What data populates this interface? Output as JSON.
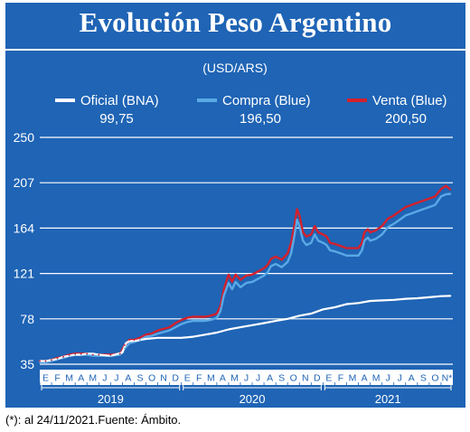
{
  "title": "Evolución Peso Argentino",
  "source_note": "(*): al 24/11/2021.Fuente: Ámbito.",
  "colors": {
    "panel": "#1f64b5",
    "oficial": "#ffffff",
    "compra": "#5aa9e6",
    "venta": "#d4202c",
    "axis_text": "#ffffff",
    "gridline": "#ffffff"
  },
  "chart_data": {
    "type": "line",
    "subtitle": "(USD/ARS)",
    "ylim": [
      35,
      250
    ],
    "yticks": [
      35,
      78,
      121,
      164,
      207,
      250
    ],
    "grid": true,
    "legend_placement": "top",
    "month_labels": [
      "E",
      "F",
      "M",
      "A",
      "M",
      "J",
      "J",
      "A",
      "S",
      "O",
      "N",
      "D",
      "E",
      "F",
      "M",
      "A",
      "M",
      "J",
      "J",
      "A",
      "S",
      "O",
      "N",
      "D",
      "E",
      "F",
      "M",
      "A",
      "M",
      "J",
      "J",
      "A",
      "S",
      "O",
      "N*"
    ],
    "years": [
      {
        "label": "2019",
        "start_month": 0,
        "end_month": 12
      },
      {
        "label": "2020",
        "start_month": 12,
        "end_month": 24
      },
      {
        "label": "2021",
        "start_month": 24,
        "end_month": 35
      }
    ],
    "series": [
      {
        "name": "Oficial (BNA)",
        "last_value": "99,75",
        "color": "#ffffff",
        "points": [
          [
            0,
            38
          ],
          [
            0.5,
            38
          ],
          [
            1,
            39
          ],
          [
            1.5,
            40
          ],
          [
            2,
            42
          ],
          [
            2.5,
            43
          ],
          [
            3,
            44
          ],
          [
            3.5,
            44
          ],
          [
            4,
            45
          ],
          [
            4.5,
            45
          ],
          [
            5,
            44
          ],
          [
            6,
            43
          ],
          [
            7,
            46
          ],
          [
            7.3,
            55
          ],
          [
            7.6,
            57
          ],
          [
            8,
            57
          ],
          [
            9,
            59
          ],
          [
            10,
            60
          ],
          [
            11,
            60
          ],
          [
            12,
            60
          ],
          [
            13,
            61
          ],
          [
            14,
            63
          ],
          [
            15,
            65
          ],
          [
            16,
            68
          ],
          [
            17,
            70
          ],
          [
            18,
            72
          ],
          [
            19,
            74
          ],
          [
            20,
            76
          ],
          [
            21,
            78
          ],
          [
            22,
            81
          ],
          [
            23,
            83
          ],
          [
            24,
            87
          ],
          [
            25,
            89
          ],
          [
            26,
            92
          ],
          [
            27,
            93
          ],
          [
            28,
            95
          ],
          [
            29,
            95.5
          ],
          [
            30,
            96
          ],
          [
            31,
            97
          ],
          [
            32,
            97.5
          ],
          [
            33,
            98.5
          ],
          [
            34,
            99.5
          ],
          [
            34.8,
            99.75
          ]
        ]
      },
      {
        "name": "Compra (Blue)",
        "last_value": "196,50",
        "color": "#5aa9e6",
        "points": [
          [
            0,
            37
          ],
          [
            0.5,
            37
          ],
          [
            1,
            38
          ],
          [
            1.5,
            40
          ],
          [
            2,
            41
          ],
          [
            2.5,
            43
          ],
          [
            3,
            44
          ],
          [
            3.5,
            44
          ],
          [
            4,
            44
          ],
          [
            4.5,
            43
          ],
          [
            5,
            43
          ],
          [
            6,
            43
          ],
          [
            6.8,
            44
          ],
          [
            7.2,
            50
          ],
          [
            7.6,
            55
          ],
          [
            8,
            56
          ],
          [
            8.5,
            58
          ],
          [
            9,
            61
          ],
          [
            9.5,
            62
          ],
          [
            10,
            64
          ],
          [
            11,
            67
          ],
          [
            11.5,
            70
          ],
          [
            12,
            73
          ],
          [
            12.5,
            75
          ],
          [
            13,
            76
          ],
          [
            13.5,
            76
          ],
          [
            14,
            76
          ],
          [
            14.5,
            77
          ],
          [
            15,
            79
          ],
          [
            15.3,
            85
          ],
          [
            15.6,
            100
          ],
          [
            16,
            112
          ],
          [
            16.3,
            106
          ],
          [
            16.6,
            113
          ],
          [
            17,
            108
          ],
          [
            17.5,
            112
          ],
          [
            18,
            113
          ],
          [
            18.5,
            116
          ],
          [
            19,
            119
          ],
          [
            19.3,
            122
          ],
          [
            19.6,
            128
          ],
          [
            20,
            130
          ],
          [
            20.5,
            127
          ],
          [
            21,
            132
          ],
          [
            21.3,
            140
          ],
          [
            21.6,
            158
          ],
          [
            21.8,
            172
          ],
          [
            22,
            166
          ],
          [
            22.3,
            152
          ],
          [
            22.6,
            148
          ],
          [
            23,
            150
          ],
          [
            23.3,
            158
          ],
          [
            23.6,
            152
          ],
          [
            24,
            150
          ],
          [
            24.3,
            148
          ],
          [
            24.6,
            143
          ],
          [
            25,
            142
          ],
          [
            25.5,
            140
          ],
          [
            26,
            138
          ],
          [
            26.5,
            138
          ],
          [
            27,
            138
          ],
          [
            27.3,
            143
          ],
          [
            27.5,
            152
          ],
          [
            27.8,
            155
          ],
          [
            28,
            152
          ],
          [
            28.5,
            154
          ],
          [
            29,
            158
          ],
          [
            29.5,
            165
          ],
          [
            30,
            168
          ],
          [
            30.5,
            172
          ],
          [
            31,
            176
          ],
          [
            31.5,
            178
          ],
          [
            32,
            180
          ],
          [
            32.5,
            182
          ],
          [
            33,
            184
          ],
          [
            33.5,
            186
          ],
          [
            34,
            194
          ],
          [
            34.4,
            196
          ],
          [
            34.8,
            196.5
          ]
        ]
      },
      {
        "name": "Venta (Blue)",
        "last_value": "200,50",
        "color": "#d4202c",
        "points": [
          [
            0,
            38
          ],
          [
            0.5,
            38
          ],
          [
            1,
            39
          ],
          [
            1.5,
            41
          ],
          [
            2,
            42
          ],
          [
            2.5,
            44
          ],
          [
            3,
            45
          ],
          [
            3.5,
            45
          ],
          [
            4,
            45
          ],
          [
            4.5,
            44
          ],
          [
            5,
            44
          ],
          [
            6,
            44
          ],
          [
            6.8,
            45
          ],
          [
            7.2,
            53
          ],
          [
            7.6,
            58
          ],
          [
            8,
            58
          ],
          [
            8.5,
            60
          ],
          [
            9,
            63
          ],
          [
            9.5,
            64
          ],
          [
            10,
            67
          ],
          [
            11,
            70
          ],
          [
            11.5,
            74
          ],
          [
            12,
            77
          ],
          [
            12.5,
            79
          ],
          [
            13,
            80
          ],
          [
            13.5,
            80
          ],
          [
            14,
            80
          ],
          [
            14.5,
            81
          ],
          [
            15,
            83
          ],
          [
            15.3,
            90
          ],
          [
            15.6,
            106
          ],
          [
            16,
            120
          ],
          [
            16.3,
            113
          ],
          [
            16.6,
            120
          ],
          [
            17,
            115
          ],
          [
            17.5,
            119
          ],
          [
            18,
            120
          ],
          [
            18.5,
            123
          ],
          [
            19,
            126
          ],
          [
            19.3,
            129
          ],
          [
            19.6,
            135
          ],
          [
            20,
            137
          ],
          [
            20.5,
            134
          ],
          [
            21,
            140
          ],
          [
            21.3,
            150
          ],
          [
            21.6,
            168
          ],
          [
            21.8,
            182
          ],
          [
            22,
            176
          ],
          [
            22.3,
            160
          ],
          [
            22.6,
            156
          ],
          [
            23,
            158
          ],
          [
            23.3,
            166
          ],
          [
            23.6,
            160
          ],
          [
            24,
            158
          ],
          [
            24.3,
            156
          ],
          [
            24.6,
            150
          ],
          [
            25,
            149
          ],
          [
            25.5,
            147
          ],
          [
            26,
            145
          ],
          [
            26.5,
            145
          ],
          [
            27,
            145
          ],
          [
            27.3,
            150
          ],
          [
            27.5,
            160
          ],
          [
            27.8,
            163
          ],
          [
            28,
            160
          ],
          [
            28.5,
            162
          ],
          [
            29,
            166
          ],
          [
            29.5,
            173
          ],
          [
            30,
            176
          ],
          [
            30.5,
            180
          ],
          [
            31,
            184
          ],
          [
            31.5,
            186
          ],
          [
            32,
            188
          ],
          [
            32.5,
            190
          ],
          [
            33,
            192
          ],
          [
            33.5,
            194
          ],
          [
            34,
            201
          ],
          [
            34.4,
            204
          ],
          [
            34.8,
            200.5
          ]
        ]
      }
    ]
  }
}
